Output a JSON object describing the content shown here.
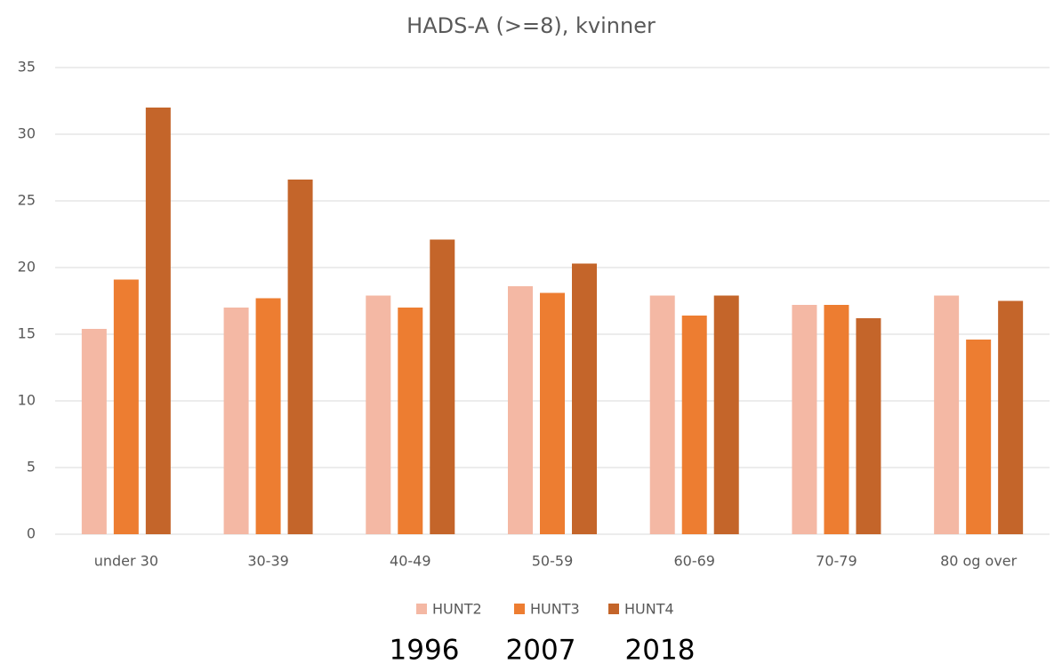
{
  "chart_data": {
    "type": "bar",
    "title": "HADS-A (>=8), kvinner",
    "categories": [
      "under 30",
      "30-39",
      "40-49",
      "50-59",
      "60-69",
      "70-79",
      "80 og over"
    ],
    "series": [
      {
        "name": "HUNT2",
        "color": "#f4b8a4",
        "values": [
          15.4,
          17.0,
          17.9,
          18.6,
          17.9,
          17.2,
          17.9
        ]
      },
      {
        "name": "HUNT3",
        "color": "#ed7d31",
        "values": [
          19.1,
          17.7,
          17.0,
          18.1,
          16.4,
          17.2,
          14.6
        ]
      },
      {
        "name": "HUNT4",
        "color": "#c4652a",
        "values": [
          32.0,
          26.6,
          22.1,
          20.3,
          17.9,
          16.2,
          17.5
        ]
      }
    ],
    "ylim": [
      0,
      35
    ],
    "yticks": [
      0,
      5,
      10,
      15,
      20,
      25,
      30,
      35
    ],
    "grid": true,
    "annotations": [
      "1996",
      "2007",
      "2018"
    ]
  }
}
